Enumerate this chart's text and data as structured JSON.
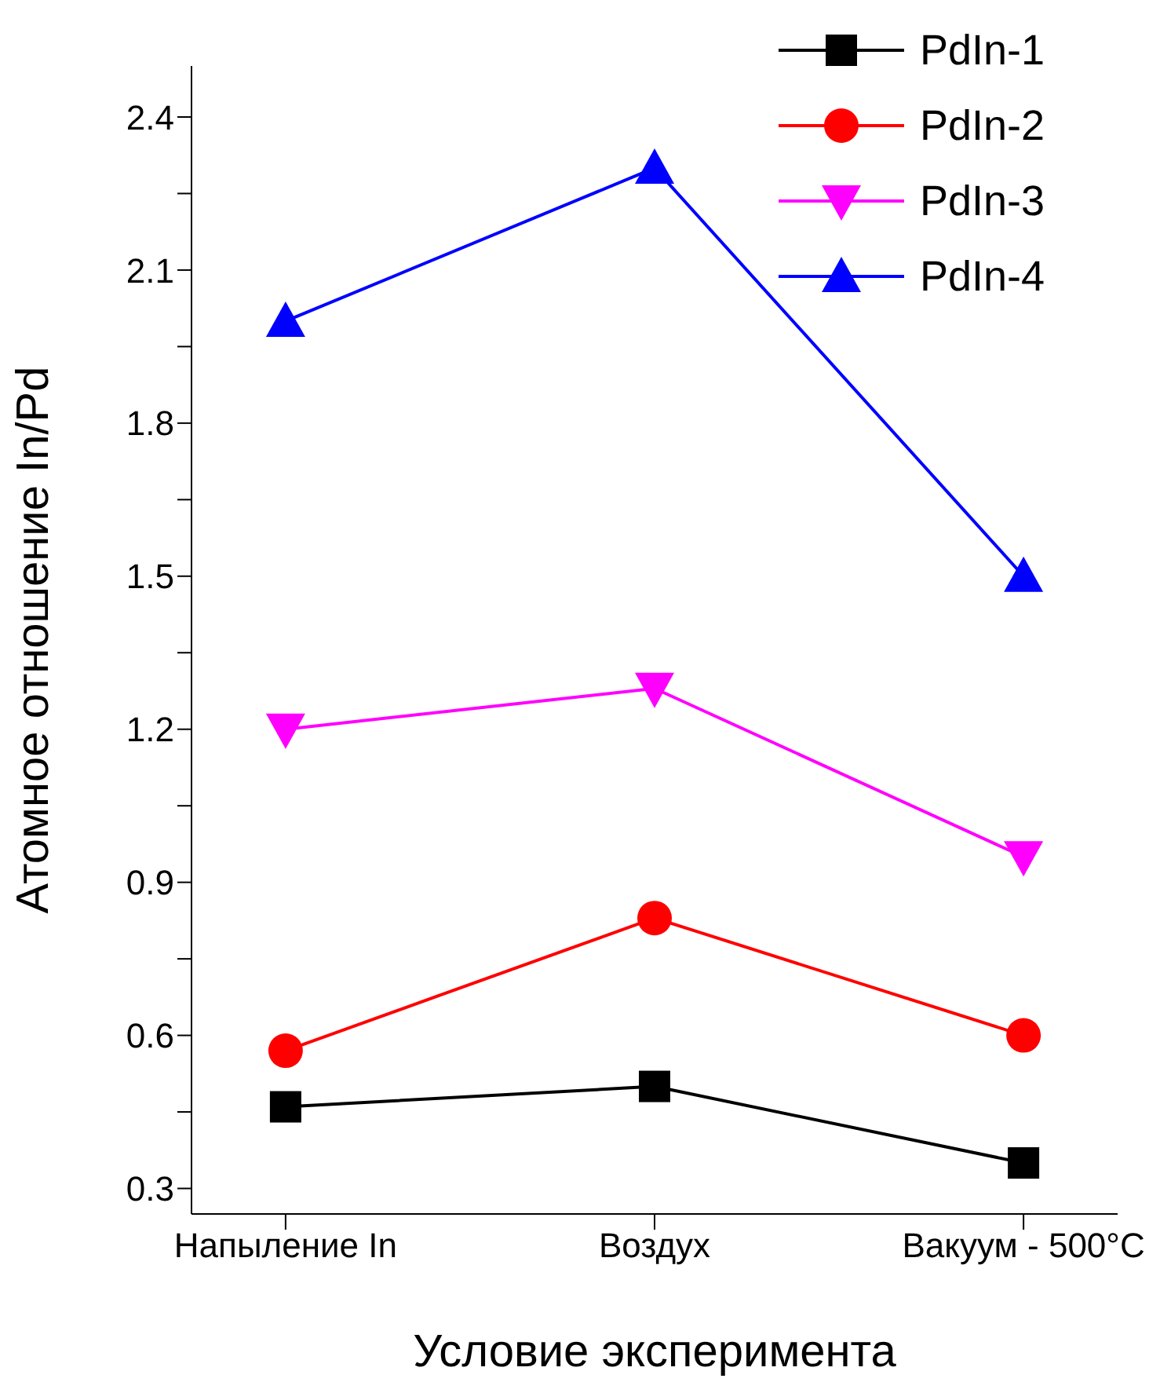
{
  "chart_data": {
    "type": "line",
    "xlabel": "Условие эксперимента",
    "ylabel": "Атомное отношение In/Pd",
    "categories": [
      "Напыление In",
      "Воздух",
      "Вакуум - 500°C"
    ],
    "ylim": [
      0.25,
      2.5
    ],
    "yticks": [
      0.3,
      {
        "value": 0.45,
        "label": null
      },
      0.6,
      {
        "value": 0.75,
        "label": null
      },
      0.9,
      {
        "value": 1.05,
        "label": null
      },
      1.2,
      {
        "value": 1.35,
        "label": null
      },
      1.5,
      {
        "value": 1.65,
        "label": null
      },
      1.8,
      {
        "value": 1.95,
        "label": null
      },
      2.1,
      {
        "value": 2.25,
        "label": null
      },
      2.4
    ],
    "grid": false,
    "legend": "top right",
    "series": [
      {
        "name": "PdIn-1",
        "color": "#000000",
        "marker": "square",
        "values": [
          0.46,
          0.5,
          0.35
        ]
      },
      {
        "name": "PdIn-2",
        "color": "#ff0000",
        "marker": "circle",
        "values": [
          0.57,
          0.83,
          0.6
        ]
      },
      {
        "name": "PdIn-3",
        "color": "#ff00ff",
        "marker": "triangle-down",
        "values": [
          1.2,
          1.28,
          0.95
        ]
      },
      {
        "name": "PdIn-4",
        "color": "#0000ff",
        "marker": "triangle",
        "values": [
          2.0,
          2.3,
          1.5
        ]
      }
    ]
  }
}
